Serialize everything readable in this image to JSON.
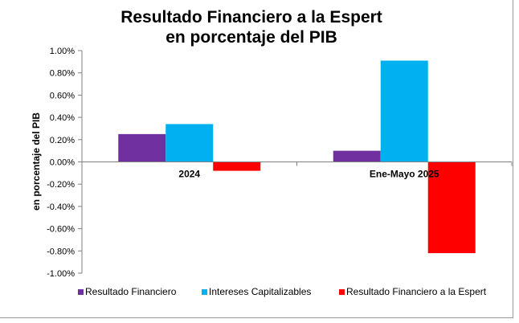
{
  "colors": {
    "resultado_financiero": "#7030a0",
    "intereses_capitalizables": "#00b0f0",
    "resultado_espert": "#ff0000",
    "axis": "#808080",
    "text": "#000000"
  },
  "chart_data": {
    "type": "bar",
    "title": "Resultado Financiero a la Espert\nen porcentaje del PIB",
    "title_lines": [
      "Resultado Financiero a la Espert",
      "en porcentaje del PIB"
    ],
    "ylabel": "en porcentaje  del PIB",
    "xlabel": "",
    "categories": [
      "2024",
      "Ene-Mayo 2025"
    ],
    "ylim": [
      -1.0,
      1.0
    ],
    "yticks": [
      1.0,
      0.8,
      0.6,
      0.4,
      0.2,
      0.0,
      -0.2,
      -0.4,
      -0.6,
      -0.8,
      -1.0
    ],
    "ytick_labels": [
      "1.00%",
      "0.80%",
      "0.60%",
      "0.40%",
      "0.20%",
      "0.00%",
      "-0.20%",
      "-0.40%",
      "-0.60%",
      "-0.80%",
      "-1.00%"
    ],
    "grid": false,
    "legend_position": "bottom",
    "series": [
      {
        "name": "Resultado Financiero",
        "color": "#7030a0",
        "values": [
          0.25,
          0.1
        ]
      },
      {
        "name": "Intereses Capitalizables",
        "color": "#00b0f0",
        "values": [
          0.34,
          0.91
        ]
      },
      {
        "name": "Resultado Financiero  a la Espert",
        "color": "#ff0000",
        "values": [
          -0.08,
          -0.82
        ]
      }
    ]
  }
}
